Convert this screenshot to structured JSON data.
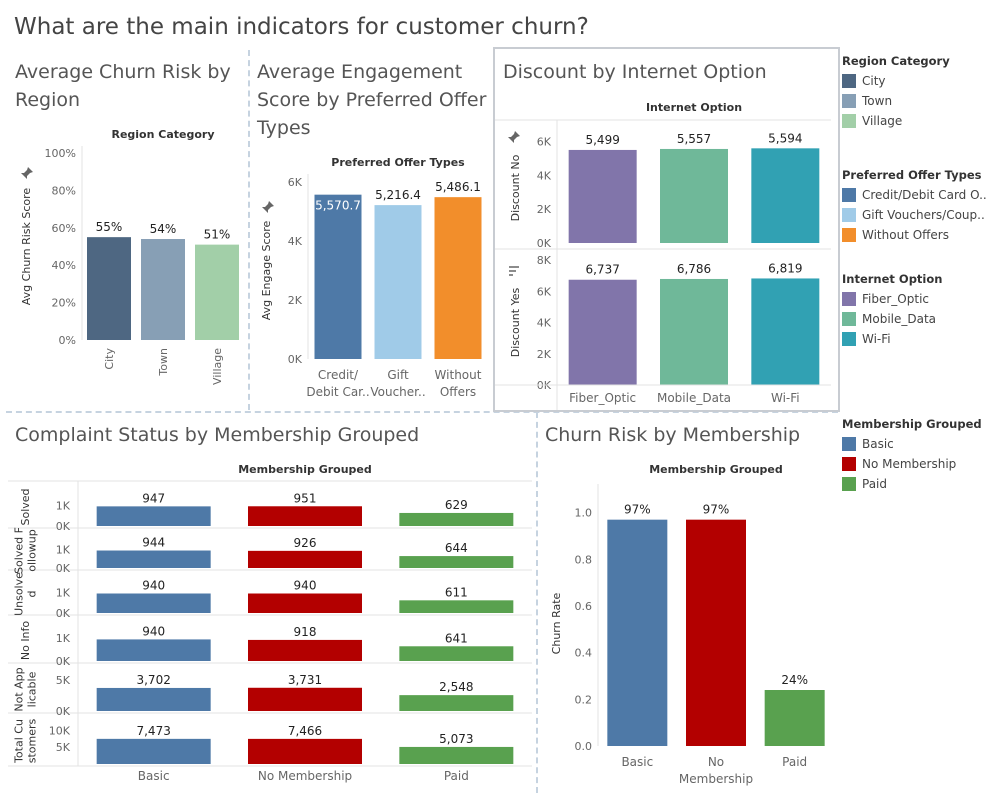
{
  "dashboard": {
    "title": "What are the main indicators for customer churn?"
  },
  "colors": {
    "city": "#4e6782",
    "town": "#879fb5",
    "village": "#a2cfa8",
    "credit": "#4e79a7",
    "gift": "#a0cbe8",
    "without": "#f28e2b",
    "fiber": "#8175aa",
    "mobile": "#6fb899",
    "wifi": "#31a1b3",
    "basic": "#4e79a7",
    "nomember": "#b30000",
    "paid": "#59a14f"
  },
  "chart_data": [
    {
      "id": "region",
      "type": "bar",
      "title": "Average Churn Risk by Region",
      "header": "Region Category",
      "ylabel": "Avg Churn Risk Score",
      "categories": [
        "City",
        "Town",
        "Village"
      ],
      "values": [
        0.55,
        0.54,
        0.51
      ],
      "data_labels": [
        "55%",
        "54%",
        "51%"
      ],
      "ylim": [
        0,
        1.0
      ],
      "yticks": [
        {
          "v": 0,
          "t": "0%"
        },
        {
          "v": 0.2,
          "t": "20%"
        },
        {
          "v": 0.4,
          "t": "40%"
        },
        {
          "v": 0.6,
          "t": "60%"
        },
        {
          "v": 0.8,
          "t": "80%"
        },
        {
          "v": 1.0,
          "t": "100%"
        }
      ],
      "colors": [
        "city",
        "town",
        "village"
      ]
    },
    {
      "id": "engage",
      "type": "bar",
      "title": "Average Engagement Score by Preferred Offer Types",
      "header": "Preferred Offer Types",
      "ylabel": "Avg Engage Score",
      "categories": [
        [
          "Credit/",
          "Debit Car.."
        ],
        [
          "Gift",
          "Voucher.."
        ],
        [
          "Without",
          "Offers"
        ]
      ],
      "values": [
        5570.7,
        5216.4,
        5486.1
      ],
      "data_labels": [
        "5,570.7",
        "5,216.4",
        "5,486.1"
      ],
      "ylim": [
        0,
        6000
      ],
      "yticks": [
        {
          "v": 0,
          "t": "0K"
        },
        {
          "v": 2000,
          "t": "2K"
        },
        {
          "v": 4000,
          "t": "4K"
        },
        {
          "v": 6000,
          "t": "6K"
        }
      ],
      "colors": [
        "credit",
        "gift",
        "without"
      ]
    },
    {
      "id": "discount",
      "type": "bar",
      "title": "Discount by Internet Option",
      "header": "Internet Option",
      "categories": [
        "Fiber_Optic",
        "Mobile_Data",
        "Wi-Fi"
      ],
      "colors": [
        "fiber",
        "mobile",
        "wifi"
      ],
      "rows": [
        {
          "label": "Discount No",
          "values": [
            5499,
            5557,
            5594
          ],
          "data_labels": [
            "5,499",
            "5,557",
            "5,594"
          ],
          "ylim": [
            0,
            6500
          ],
          "yticks": [
            {
              "v": 0,
              "t": "0K"
            },
            {
              "v": 2000,
              "t": "2K"
            },
            {
              "v": 4000,
              "t": "4K"
            },
            {
              "v": 6000,
              "t": "6K"
            }
          ]
        },
        {
          "label": "Discount Yes",
          "values": [
            6737,
            6786,
            6819
          ],
          "data_labels": [
            "6,737",
            "6,786",
            "6,819"
          ],
          "ylim": [
            0,
            8000
          ],
          "yticks": [
            {
              "v": 0,
              "t": "0K"
            },
            {
              "v": 2000,
              "t": "2K"
            },
            {
              "v": 4000,
              "t": "4K"
            },
            {
              "v": 6000,
              "t": "6K"
            },
            {
              "v": 8000,
              "t": "8K"
            }
          ]
        }
      ]
    },
    {
      "id": "complaint",
      "type": "bar",
      "title": "Complaint Status by Membership Grouped",
      "header": "Membership Grouped",
      "categories": [
        "Basic",
        "No Membership",
        "Paid"
      ],
      "colors": [
        "basic",
        "nomember",
        "paid"
      ],
      "rows": [
        {
          "label": [
            "Solved"
          ],
          "values": [
            947,
            951,
            629
          ],
          "data_labels": [
            "947",
            "951",
            "629"
          ],
          "ylim": [
            0,
            1350
          ],
          "yticks": [
            {
              "v": 0,
              "t": "0K"
            },
            {
              "v": 1000,
              "t": "1K"
            }
          ]
        },
        {
          "label": [
            "Solved F",
            "ollowup"
          ],
          "values": [
            944,
            926,
            644
          ],
          "data_labels": [
            "944",
            "926",
            "644"
          ],
          "ylim": [
            0,
            1350
          ],
          "yticks": [
            {
              "v": 0,
              "t": "0K"
            },
            {
              "v": 1000,
              "t": "1K"
            }
          ]
        },
        {
          "label": [
            "Unsolve",
            "d"
          ],
          "values": [
            940,
            940,
            611
          ],
          "data_labels": [
            "940",
            "940",
            "611"
          ],
          "ylim": [
            0,
            1350
          ],
          "yticks": [
            {
              "v": 0,
              "t": "0K"
            },
            {
              "v": 1000,
              "t": "1K"
            }
          ]
        },
        {
          "label": [
            "No Info"
          ],
          "values": [
            940,
            918,
            641
          ],
          "data_labels": [
            "940",
            "918",
            "641"
          ],
          "ylim": [
            0,
            1350
          ],
          "yticks": [
            {
              "v": 0,
              "t": "0K"
            },
            {
              "v": 1000,
              "t": "1K"
            }
          ]
        },
        {
          "label": [
            "Not App",
            "licable"
          ],
          "values": [
            3702,
            3731,
            2548
          ],
          "data_labels": [
            "3,702",
            "3,731",
            "2,548"
          ],
          "ylim": [
            0,
            5300
          ],
          "yticks": [
            {
              "v": 0,
              "t": "0K"
            },
            {
              "v": 5000,
              "t": "5K"
            }
          ]
        },
        {
          "label": [
            "Total Cu",
            "stomers"
          ],
          "values": [
            7473,
            7466,
            5073
          ],
          "data_labels": [
            "7,473",
            "7,466",
            "5,073"
          ],
          "ylim": [
            0,
            10700
          ],
          "yticks": [
            {
              "v": 5000,
              "t": "5K"
            },
            {
              "v": 10000,
              "t": "10K"
            }
          ]
        }
      ]
    },
    {
      "id": "membership",
      "type": "bar",
      "title": "Churn Risk by Membership",
      "header": "Membership Grouped",
      "ylabel": "Churn Rate",
      "categories": [
        [
          "Basic"
        ],
        [
          "No",
          "Membership"
        ],
        [
          "Paid"
        ]
      ],
      "values": [
        0.97,
        0.97,
        0.24
      ],
      "data_labels": [
        "97%",
        "97%",
        "24%"
      ],
      "ylim": [
        0,
        1.05
      ],
      "yticks": [
        {
          "v": 0,
          "t": "0.0"
        },
        {
          "v": 0.2,
          "t": "0.2"
        },
        {
          "v": 0.4,
          "t": "0.4"
        },
        {
          "v": 0.6,
          "t": "0.6"
        },
        {
          "v": 0.8,
          "t": "0.8"
        },
        {
          "v": 1.0,
          "t": "1.0"
        }
      ],
      "colors": [
        "basic",
        "nomember",
        "paid"
      ]
    }
  ],
  "legends": [
    {
      "id": "region",
      "title": "Region Category",
      "items": [
        {
          "label": "City",
          "color": "city"
        },
        {
          "label": "Town",
          "color": "town"
        },
        {
          "label": "Village",
          "color": "village"
        }
      ]
    },
    {
      "id": "offer",
      "title": "Preferred Offer Types",
      "items": [
        {
          "label": "Credit/Debit Card O..",
          "color": "credit"
        },
        {
          "label": "Gift Vouchers/Coup..",
          "color": "gift"
        },
        {
          "label": "Without Offers",
          "color": "without"
        }
      ]
    },
    {
      "id": "internet",
      "title": "Internet Option",
      "items": [
        {
          "label": "Fiber_Optic",
          "color": "fiber"
        },
        {
          "label": "Mobile_Data",
          "color": "mobile"
        },
        {
          "label": "Wi-Fi",
          "color": "wifi"
        }
      ]
    },
    {
      "id": "membership",
      "title": "Membership Grouped",
      "items": [
        {
          "label": "Basic",
          "color": "basic"
        },
        {
          "label": "No Membership",
          "color": "nomember"
        },
        {
          "label": "Paid",
          "color": "paid"
        }
      ]
    }
  ]
}
